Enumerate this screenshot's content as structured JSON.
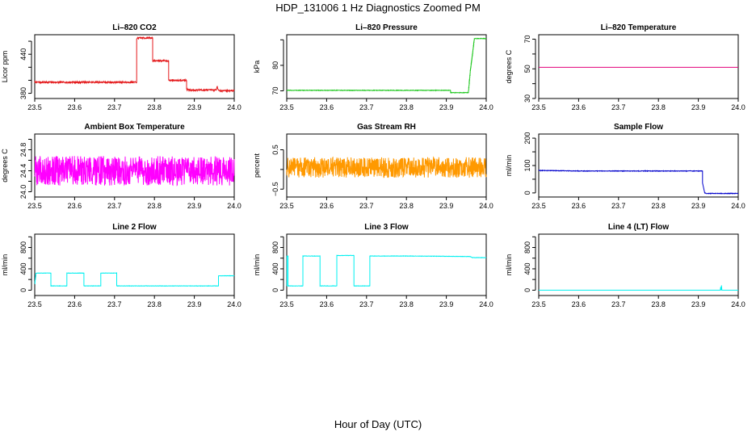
{
  "page": {
    "title": "HDP_131006  1 Hz Diagnostics Zoomed PM",
    "x_axis_title": "Hour of Day (UTC)"
  },
  "chart_data": [
    {
      "id": "co2",
      "type": "line",
      "title": "Li–820 CO2",
      "ylabel": "Licor ppm",
      "xlim": [
        23.5,
        24.0
      ],
      "ylim": [
        372,
        470
      ],
      "xticks": [
        23.5,
        23.6,
        23.7,
        23.8,
        23.9,
        24.0
      ],
      "xtick_labels": [
        "23.5",
        "23.6",
        "23.7",
        "23.8",
        "23.9",
        "24.0"
      ],
      "yticks": [
        380,
        400,
        420,
        440,
        460
      ],
      "ytick_labels": [
        "380",
        "",
        "",
        "440",
        ""
      ],
      "series": [
        {
          "color": "#e41a1c",
          "noise": 1.2,
          "x": [
            23.5,
            23.755,
            23.755,
            23.758,
            23.795,
            23.795,
            23.835,
            23.835,
            23.88,
            23.88,
            23.89,
            23.955,
            23.957,
            23.96,
            23.965,
            24.0
          ],
          "y": [
            397,
            397,
            462,
            465,
            465,
            430,
            430,
            400,
            400,
            386,
            385,
            385,
            392,
            385,
            384,
            384
          ]
        }
      ]
    },
    {
      "id": "pressure",
      "type": "line",
      "title": "Li–820 Pressure",
      "ylabel": "kPa",
      "xlim": [
        23.5,
        24.0
      ],
      "ylim": [
        67,
        92
      ],
      "xticks": [
        23.5,
        23.6,
        23.7,
        23.8,
        23.9,
        24.0
      ],
      "xtick_labels": [
        "23.5",
        "23.6",
        "23.7",
        "23.8",
        "23.9",
        "24.0"
      ],
      "yticks": [
        70,
        80,
        90
      ],
      "ytick_labels": [
        "70",
        "80",
        ""
      ],
      "series": [
        {
          "color": "#1fc71f",
          "noise": 0.1,
          "x": [
            23.5,
            23.91,
            23.91,
            23.955,
            23.96,
            23.965,
            23.97,
            23.975,
            24.0
          ],
          "y": [
            70.2,
            70.2,
            69.3,
            69.3,
            78,
            84,
            90.5,
            90.5,
            90.5
          ]
        }
      ]
    },
    {
      "id": "li820-temp",
      "type": "line",
      "title": "Li–820 Temperature",
      "ylabel": "degrees C",
      "xlim": [
        23.5,
        24.0
      ],
      "ylim": [
        30,
        73
      ],
      "xticks": [
        23.5,
        23.6,
        23.7,
        23.8,
        23.9,
        24.0
      ],
      "xtick_labels": [
        "23.5",
        "23.6",
        "23.7",
        "23.8",
        "23.9",
        "24.0"
      ],
      "yticks": [
        30,
        40,
        50,
        60,
        70
      ],
      "ytick_labels": [
        "30",
        "",
        "50",
        "",
        "70"
      ],
      "series": [
        {
          "color": "#e2007a",
          "noise": 0,
          "x": [
            23.5,
            24.0
          ],
          "y": [
            51,
            51
          ]
        }
      ]
    },
    {
      "id": "box-temp",
      "type": "line",
      "title": "Ambient Box Temperature",
      "ylabel": "degrees C",
      "xlim": [
        23.5,
        24.0
      ],
      "ylim": [
        23.9,
        25.1
      ],
      "xticks": [
        23.5,
        23.6,
        23.7,
        23.8,
        23.9,
        24.0
      ],
      "xtick_labels": [
        "23.5",
        "23.6",
        "23.7",
        "23.8",
        "23.9",
        "24.0"
      ],
      "yticks": [
        24.0,
        24.2,
        24.4,
        24.6,
        24.8,
        25.0
      ],
      "ytick_labels": [
        "24.0",
        "",
        "24.4",
        "",
        "24.8",
        ""
      ],
      "series": [
        {
          "color": "#ff00ff",
          "noise": 0.28,
          "x": [
            23.5,
            24.0
          ],
          "y": [
            24.4,
            24.4
          ]
        }
      ]
    },
    {
      "id": "rh",
      "type": "line",
      "title": "Gas Stream RH",
      "ylabel": "percent",
      "xlim": [
        23.5,
        24.0
      ],
      "ylim": [
        -0.7,
        0.9
      ],
      "xticks": [
        23.5,
        23.6,
        23.7,
        23.8,
        23.9,
        24.0
      ],
      "xtick_labels": [
        "23.5",
        "23.6",
        "23.7",
        "23.8",
        "23.9",
        "24.0"
      ],
      "yticks": [
        -0.5,
        0.0,
        0.5
      ],
      "ytick_labels": [
        "−0.5",
        "",
        "0.5"
      ],
      "series": [
        {
          "color": "#ff9900",
          "noise": 0.26,
          "x": [
            23.5,
            24.0
          ],
          "y": [
            0.05,
            0.05
          ]
        }
      ]
    },
    {
      "id": "sample-flow",
      "type": "line",
      "title": "Sample Flow",
      "ylabel": "ml/min",
      "xlim": [
        23.5,
        24.0
      ],
      "ylim": [
        -15,
        215
      ],
      "xticks": [
        23.5,
        23.6,
        23.7,
        23.8,
        23.9,
        24.0
      ],
      "xtick_labels": [
        "23.5",
        "23.6",
        "23.7",
        "23.8",
        "23.9",
        "24.0"
      ],
      "yticks": [
        0,
        50,
        100,
        150,
        200
      ],
      "ytick_labels": [
        "0",
        "",
        "100",
        "",
        "200"
      ],
      "series": [
        {
          "color": "#0000cc",
          "noise": 1.0,
          "x": [
            23.5,
            23.6,
            23.7,
            23.8,
            23.91,
            23.91,
            23.916,
            23.92,
            24.0
          ],
          "y": [
            82,
            80,
            80,
            80,
            80,
            40,
            0,
            -2,
            -2
          ]
        }
      ]
    },
    {
      "id": "line2-flow",
      "type": "line",
      "title": "Line 2 Flow",
      "ylabel": "ml/min",
      "xlim": [
        23.5,
        24.0
      ],
      "ylim": [
        -100,
        1050
      ],
      "xticks": [
        23.5,
        23.6,
        23.7,
        23.8,
        23.9,
        24.0
      ],
      "xtick_labels": [
        "23.5",
        "23.6",
        "23.7",
        "23.8",
        "23.9",
        "24.0"
      ],
      "yticks": [
        0,
        200,
        400,
        600,
        800,
        1000
      ],
      "ytick_labels": [
        "0",
        "",
        "400",
        "",
        "800",
        ""
      ],
      "series": [
        {
          "color": "#00f0f0",
          "noise": 3,
          "x": [
            23.5,
            23.5,
            23.503,
            23.503,
            23.54,
            23.54,
            23.58,
            23.58,
            23.623,
            23.623,
            23.665,
            23.665,
            23.705,
            23.705,
            23.96,
            23.96,
            24.0
          ],
          "y": [
            120,
            120,
            320,
            320,
            320,
            80,
            80,
            320,
            320,
            80,
            80,
            320,
            320,
            80,
            80,
            270,
            270
          ]
        }
      ]
    },
    {
      "id": "line3-flow",
      "type": "line",
      "title": "Line 3 Flow",
      "ylabel": "ml/min",
      "xlim": [
        23.5,
        24.0
      ],
      "ylim": [
        -100,
        1050
      ],
      "xticks": [
        23.5,
        23.6,
        23.7,
        23.8,
        23.9,
        24.0
      ],
      "xtick_labels": [
        "23.5",
        "23.6",
        "23.7",
        "23.8",
        "23.9",
        "24.0"
      ],
      "yticks": [
        0,
        200,
        400,
        600,
        800,
        1000
      ],
      "ytick_labels": [
        "0",
        "",
        "400",
        "",
        "800",
        ""
      ],
      "series": [
        {
          "color": "#00f0f0",
          "noise": 3,
          "x": [
            23.5,
            23.5,
            23.503,
            23.503,
            23.54,
            23.54,
            23.583,
            23.583,
            23.625,
            23.625,
            23.668,
            23.668,
            23.708,
            23.708,
            23.8,
            23.9,
            23.96,
            23.965,
            24.0
          ],
          "y": [
            80,
            640,
            640,
            80,
            80,
            640,
            640,
            80,
            80,
            650,
            650,
            80,
            80,
            640,
            640,
            635,
            630,
            610,
            610
          ]
        }
      ]
    },
    {
      "id": "line4-flow",
      "type": "line",
      "title": "Line 4 (LT) Flow",
      "ylabel": "ml/min",
      "xlim": [
        23.5,
        24.0
      ],
      "ylim": [
        -100,
        1050
      ],
      "xticks": [
        23.5,
        23.6,
        23.7,
        23.8,
        23.9,
        24.0
      ],
      "xtick_labels": [
        "23.5",
        "23.6",
        "23.7",
        "23.8",
        "23.9",
        "24.0"
      ],
      "yticks": [
        0,
        200,
        400,
        600,
        800,
        1000
      ],
      "ytick_labels": [
        "0",
        "",
        "400",
        "",
        "800",
        ""
      ],
      "series": [
        {
          "color": "#00f0f0",
          "noise": 0,
          "x": [
            23.5,
            23.955,
            23.956,
            23.957,
            23.958,
            23.959,
            24.0
          ],
          "y": [
            0,
            0,
            60,
            0,
            90,
            0,
            0
          ]
        }
      ]
    }
  ]
}
